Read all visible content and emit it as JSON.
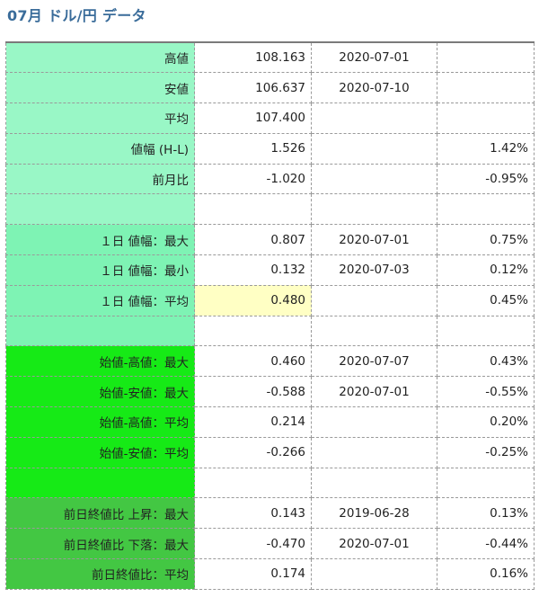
{
  "header": {
    "title": "07月 ドル/円 データ"
  },
  "colors": {
    "group1": "#99f7c6",
    "group2": "#7ef3b4",
    "group3": "#16ea16",
    "group4": "#43c743",
    "highlight": "#ffffc4",
    "positive_green": "#1aa04e",
    "negative_red": "#c62828",
    "title_blue": "#3a6c9a"
  },
  "rows": [
    {
      "label": "高値",
      "value": "108.163",
      "date": "2020-07-01",
      "pct": ""
    },
    {
      "label": "安値",
      "value": "106.637",
      "date": "2020-07-10",
      "pct": ""
    },
    {
      "label": "平均",
      "value": "107.400",
      "date": "",
      "pct": ""
    },
    {
      "label": "値幅 (H-L)",
      "value": "1.526",
      "date": "",
      "pct": "1.42%"
    },
    {
      "label": "前月比",
      "value": "-1.020",
      "date": "",
      "pct": "-0.95%"
    },
    {
      "label": "",
      "value": "",
      "date": "",
      "pct": ""
    },
    {
      "label": "１日 値幅：最大",
      "value": "0.807",
      "date": "2020-07-01",
      "pct": "0.75%"
    },
    {
      "label": "１日 値幅：最小",
      "value": "0.132",
      "date": "2020-07-03",
      "pct": "0.12%"
    },
    {
      "label": "１日 値幅：平均",
      "value": "0.480",
      "date": "",
      "pct": "0.45%"
    },
    {
      "label": "",
      "value": "",
      "date": "",
      "pct": ""
    },
    {
      "label": "始値-高値：最大",
      "value": "0.460",
      "date": "2020-07-07",
      "pct": "0.43%"
    },
    {
      "label": "始値-安値：最大",
      "value": "-0.588",
      "date": "2020-07-01",
      "pct": "-0.55%"
    },
    {
      "label": "始値-高値：平均",
      "value": "0.214",
      "date": "",
      "pct": "0.20%"
    },
    {
      "label": "始値-安値：平均",
      "value": "-0.266",
      "date": "",
      "pct": "-0.25%"
    },
    {
      "label": "",
      "value": "",
      "date": "",
      "pct": ""
    },
    {
      "label": "前日終値比 上昇：最大",
      "value": "0.143",
      "date": "2019-06-28",
      "pct": "0.13%"
    },
    {
      "label": "前日終値比 下落：最大",
      "value": "-0.470",
      "date": "2020-07-01",
      "pct": "-0.44%"
    },
    {
      "label": "前日終値比：平均",
      "value": "0.174",
      "date": "",
      "pct": "0.16%"
    }
  ]
}
